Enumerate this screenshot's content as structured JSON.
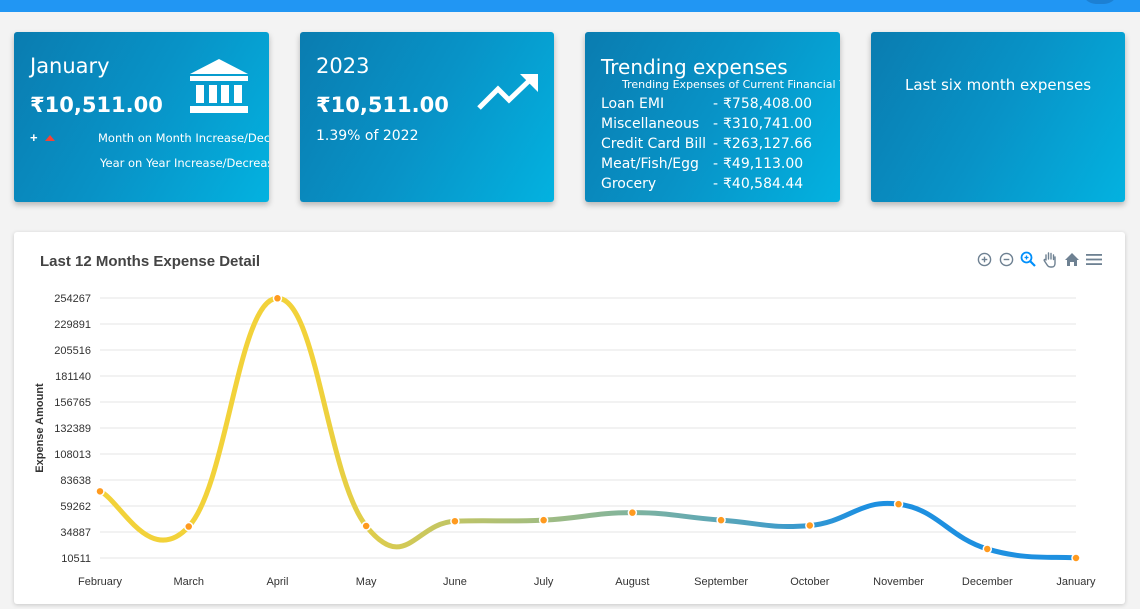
{
  "cards": {
    "month": {
      "title": "January",
      "amount": "₹10,511.00",
      "plus": "+",
      "mom_label": "Month on Month Increase/Decrease",
      "yoy_label": "Year on Year Increase/Decrease",
      "icon": "bank-icon"
    },
    "year": {
      "title": "2023",
      "amount": "₹10,511.00",
      "subtitle": "1.39% of 2022",
      "icon": "trending-up-icon"
    },
    "trending": {
      "title": "Trending expenses",
      "subtitle": "Trending Expenses of Current Financial Year",
      "dash": "-",
      "items": [
        {
          "name": "Loan EMI",
          "amount": "₹758,408.00"
        },
        {
          "name": "Miscellaneous",
          "amount": "₹310,741.00"
        },
        {
          "name": "Credit Card Bill",
          "amount": "₹263,127.66"
        },
        {
          "name": "Meat/Fish/Egg",
          "amount": "₹49,113.00"
        },
        {
          "name": "Grocery",
          "amount": "₹40,584.44"
        }
      ]
    },
    "six_month": {
      "label": "Last six month expenses"
    }
  },
  "chart": {
    "title": "Last 12 Months Expense Detail",
    "toolbar": [
      "zoom-in-icon",
      "zoom-out-icon",
      "zoom-select-icon",
      "pan-hand-icon",
      "home-reset-icon",
      "menu-icon"
    ]
  },
  "chart_data": {
    "type": "line",
    "title": "Last 12 Months Expense Detail",
    "xlabel": "",
    "ylabel": "Expense Amount",
    "categories": [
      "February",
      "March",
      "April",
      "May",
      "June",
      "July",
      "August",
      "September",
      "October",
      "November",
      "December",
      "January"
    ],
    "values": [
      73000,
      40000,
      254000,
      40500,
      45000,
      46000,
      53000,
      46000,
      41000,
      61000,
      19000,
      10511
    ],
    "y_ticks": [
      "254267",
      "229891",
      "205516",
      "181140",
      "156765",
      "132389",
      "108013",
      "83638",
      "59262",
      "34887",
      "10511"
    ],
    "ylim": [
      10511,
      254267
    ],
    "grid": true,
    "colors": {
      "start": "#f2d23a",
      "mid": "#7fb39f",
      "end": "#1e90e0",
      "marker": "#ff9a1f"
    }
  }
}
